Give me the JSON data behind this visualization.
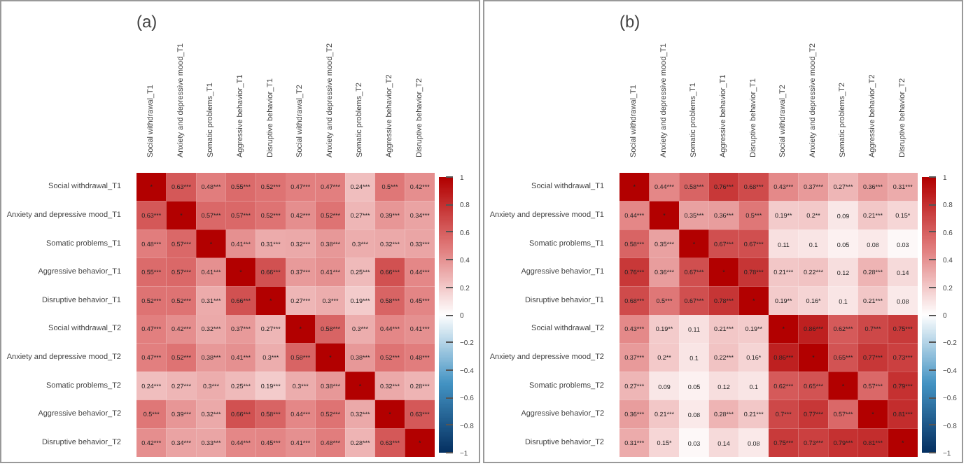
{
  "chart_data": [
    {
      "type": "heatmap",
      "title": "(a)",
      "categories": [
        "Social withdrawal_T1",
        "Anxiety and depressive mood_T1",
        "Somatic problems_T1",
        "Aggressive behavior_T1",
        "Disruptive behavior_T1",
        "Social withdrawal_T2",
        "Anxiety and depressive mood_T2",
        "Somatic problems_T2",
        "Aggressive behavior_T2",
        "Disruptive behavior_T2"
      ],
      "y_categories": [
        "Social withdrawal_T1",
        "Anxiety and depressive mood_T1",
        "Somatic problems_T1",
        "Aggressive behavior_T1",
        "Disruptive behavior_T1",
        "Social withdrawal_T2",
        "Anxiety and depressive mood_T2",
        "Somatic problems_T2",
        "Aggressive behavior_T2",
        "Disruptive behavior_T2"
      ],
      "cells": [
        [
          1,
          0.63,
          0.48,
          0.55,
          0.52,
          0.47,
          0.47,
          0.24,
          0.5,
          0.42
        ],
        [
          0.63,
          1,
          0.57,
          0.57,
          0.52,
          0.42,
          0.52,
          0.27,
          0.39,
          0.34
        ],
        [
          0.48,
          0.57,
          1,
          0.41,
          0.31,
          0.32,
          0.38,
          0.3,
          0.32,
          0.33
        ],
        [
          0.55,
          0.57,
          0.41,
          1,
          0.66,
          0.37,
          0.41,
          0.25,
          0.66,
          0.44
        ],
        [
          0.52,
          0.52,
          0.31,
          0.66,
          1,
          0.27,
          0.3,
          0.19,
          0.58,
          0.45
        ],
        [
          0.47,
          0.42,
          0.32,
          0.37,
          0.27,
          1,
          0.58,
          0.3,
          0.44,
          0.41
        ],
        [
          0.47,
          0.52,
          0.38,
          0.41,
          0.3,
          0.58,
          1,
          0.38,
          0.52,
          0.48
        ],
        [
          0.24,
          0.27,
          0.3,
          0.25,
          0.19,
          0.3,
          0.38,
          1,
          0.32,
          0.28
        ],
        [
          0.5,
          0.39,
          0.32,
          0.66,
          0.58,
          0.44,
          0.52,
          0.32,
          1,
          0.63
        ],
        [
          0.42,
          0.34,
          0.33,
          0.44,
          0.45,
          0.41,
          0.48,
          0.28,
          0.63,
          1
        ]
      ],
      "cell_labels": [
        [
          "*",
          "0.63***",
          "0.48***",
          "0.55***",
          "0.52***",
          "0.47***",
          "0.47***",
          "0.24***",
          "0.5***",
          "0.42***"
        ],
        [
          "0.63***",
          "*",
          "0.57***",
          "0.57***",
          "0.52***",
          "0.42***",
          "0.52***",
          "0.27***",
          "0.39***",
          "0.34***"
        ],
        [
          "0.48***",
          "0.57***",
          "*",
          "0.41***",
          "0.31***",
          "0.32***",
          "0.38***",
          "0.3***",
          "0.32***",
          "0.33***"
        ],
        [
          "0.55***",
          "0.57***",
          "0.41***",
          "*",
          "0.66***",
          "0.37***",
          "0.41***",
          "0.25***",
          "0.66***",
          "0.44***"
        ],
        [
          "0.52***",
          "0.52***",
          "0.31***",
          "0.66***",
          "*",
          "0.27***",
          "0.3***",
          "0.19***",
          "0.58***",
          "0.45***"
        ],
        [
          "0.47***",
          "0.42***",
          "0.32***",
          "0.37***",
          "0.27***",
          "*",
          "0.58***",
          "0.3***",
          "0.44***",
          "0.41***"
        ],
        [
          "0.47***",
          "0.52***",
          "0.38***",
          "0.41***",
          "0.3***",
          "0.58***",
          "*",
          "0.38***",
          "0.52***",
          "0.48***"
        ],
        [
          "0.24***",
          "0.27***",
          "0.3***",
          "0.25***",
          "0.19***",
          "0.3***",
          "0.38***",
          "*",
          "0.32***",
          "0.28***"
        ],
        [
          "0.5***",
          "0.39***",
          "0.32***",
          "0.66***",
          "0.58***",
          "0.44***",
          "0.52***",
          "0.32***",
          "*",
          "0.63***"
        ],
        [
          "0.42***",
          "0.34***",
          "0.33***",
          "0.44***",
          "0.45***",
          "0.41***",
          "0.48***",
          "0.28***",
          "0.63***",
          "*"
        ]
      ],
      "clim": [
        -1,
        1
      ],
      "cticks": [
        -1,
        -0.8,
        -0.6,
        -0.4,
        -0.2,
        0,
        0.2,
        0.4,
        0.6,
        0.8,
        1
      ]
    },
    {
      "type": "heatmap",
      "title": "(b)",
      "categories": [
        "Social withdrawal_T1",
        "Anxiety and depressive mood_T1",
        "Somatic problems_T1",
        "Aggressive behavior_T1",
        "Disruptive behavior_T1",
        "Social withdrawal_T2",
        "Anxiety and depressive mood_T2",
        "Somatic problems_T2",
        "Aggressive behavior_T2",
        "Disruptive behavior_T2"
      ],
      "y_categories": [
        "Social withdrawal_T1",
        "Anxiety and depressive mood_T1",
        "Somatic problems_T1",
        "Aggressive behavior_T1",
        "Disruptive behavior_T1",
        "Social withdrawal_T2",
        "Anxiety and depressive mood_T2",
        "Somatic problems_T2",
        "Aggressive behavior_T2",
        "Disruptive behavior_T2"
      ],
      "cells": [
        [
          1,
          0.44,
          0.58,
          0.76,
          0.68,
          0.43,
          0.37,
          0.27,
          0.36,
          0.31
        ],
        [
          0.44,
          1,
          0.35,
          0.36,
          0.5,
          0.19,
          0.2,
          0.09,
          0.21,
          0.15
        ],
        [
          0.58,
          0.35,
          1,
          0.67,
          0.67,
          0.11,
          0.1,
          0.05,
          0.08,
          0.03
        ],
        [
          0.76,
          0.36,
          0.67,
          1,
          0.78,
          0.21,
          0.22,
          0.12,
          0.28,
          0.14
        ],
        [
          0.68,
          0.5,
          0.67,
          0.78,
          1,
          0.19,
          0.16,
          0.1,
          0.21,
          0.08
        ],
        [
          0.43,
          0.19,
          0.11,
          0.21,
          0.19,
          1,
          0.86,
          0.62,
          0.7,
          0.75
        ],
        [
          0.37,
          0.2,
          0.1,
          0.22,
          0.16,
          0.86,
          1,
          0.65,
          0.77,
          0.73
        ],
        [
          0.27,
          0.09,
          0.05,
          0.12,
          0.1,
          0.62,
          0.65,
          1,
          0.57,
          0.79
        ],
        [
          0.36,
          0.21,
          0.08,
          0.28,
          0.21,
          0.7,
          0.77,
          0.57,
          1,
          0.81
        ],
        [
          0.31,
          0.15,
          0.03,
          0.14,
          0.08,
          0.75,
          0.73,
          0.79,
          0.81,
          1
        ]
      ],
      "cell_labels": [
        [
          "*",
          "0.44***",
          "0.58***",
          "0.76***",
          "0.68***",
          "0.43***",
          "0.37***",
          "0.27***",
          "0.36***",
          "0.31***"
        ],
        [
          "0.44***",
          "*",
          "0.35***",
          "0.36***",
          "0.5***",
          "0.19**",
          "0.2**",
          "0.09",
          "0.21***",
          "0.15*"
        ],
        [
          "0.58***",
          "0.35***",
          "*",
          "0.67***",
          "0.67***",
          "0.11",
          "0.1",
          "0.05",
          "0.08",
          "0.03"
        ],
        [
          "0.76***",
          "0.36***",
          "0.67***",
          "*",
          "0.78***",
          "0.21***",
          "0.22***",
          "0.12",
          "0.28***",
          "0.14"
        ],
        [
          "0.68***",
          "0.5***",
          "0.67***",
          "0.78***",
          "*",
          "0.19**",
          "0.16*",
          "0.1",
          "0.21***",
          "0.08"
        ],
        [
          "0.43***",
          "0.19**",
          "0.11",
          "0.21***",
          "0.19**",
          "*",
          "0.86***",
          "0.62***",
          "0.7***",
          "0.75***"
        ],
        [
          "0.37***",
          "0.2**",
          "0.1",
          "0.22***",
          "0.16*",
          "0.86***",
          "*",
          "0.65***",
          "0.77***",
          "0.73***"
        ],
        [
          "0.27***",
          "0.09",
          "0.05",
          "0.12",
          "0.1",
          "0.62***",
          "0.65***",
          "*",
          "0.57***",
          "0.79***"
        ],
        [
          "0.36***",
          "0.21***",
          "0.08",
          "0.28***",
          "0.21***",
          "0.7***",
          "0.77***",
          "0.57***",
          "*",
          "0.81***"
        ],
        [
          "0.31***",
          "0.15*",
          "0.03",
          "0.14",
          "0.08",
          "0.75***",
          "0.73***",
          "0.79***",
          "0.81***",
          "*"
        ]
      ],
      "clim": [
        -1,
        1
      ],
      "cticks": [
        -1,
        -0.8,
        -0.6,
        -0.4,
        -0.2,
        0,
        0.2,
        0.4,
        0.6,
        0.8,
        1
      ]
    }
  ]
}
